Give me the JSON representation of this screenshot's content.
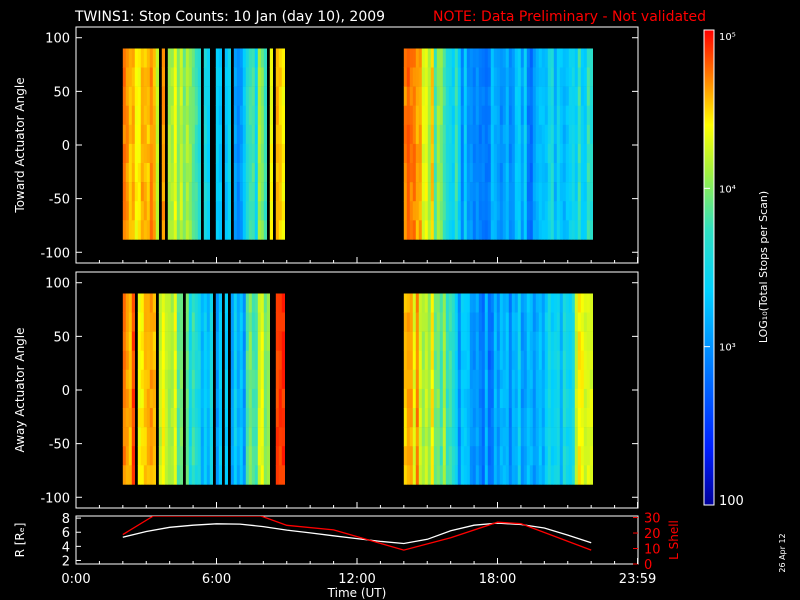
{
  "title": "TWINS1: Stop Counts: 10 Jan (day  10), 2009",
  "note": "NOTE: Data Preliminary - Not validated",
  "date_stamp": "26 Apr 12",
  "colors": {
    "background": "#000000",
    "axes": "#ffffff",
    "note": "#ff0000",
    "r_line": "#ffffff",
    "l_shell_line": "#ff0000"
  },
  "chart_data": [
    {
      "type": "heatmap",
      "name": "panel-toward",
      "ylabel": "Toward Actuator Angle",
      "xlim_hours": [
        0,
        24
      ],
      "ylim": [
        -110,
        110
      ],
      "yticks": [
        100,
        50,
        0,
        -50,
        -100
      ],
      "data_y_range": [
        -88,
        90
      ],
      "colorscale": "log",
      "coverage_intervals_hours": [
        [
          2.0,
          8.8
        ],
        [
          14.0,
          22.0
        ]
      ],
      "column_log_values": {
        "hours": [
          2.0,
          2.5,
          3.0,
          3.5,
          4.0,
          4.5,
          5.0,
          5.5,
          6.0,
          6.5,
          7.0,
          7.5,
          8.0,
          8.5,
          14.0,
          14.5,
          15.0,
          15.5,
          16.0,
          16.5,
          17.0,
          17.5,
          18.0,
          18.5,
          19.0,
          19.5,
          20.0,
          20.5,
          21.0,
          21.5
        ],
        "log10_counts": [
          4.8,
          4.6,
          4.5,
          4.4,
          4.2,
          4.0,
          3.8,
          3.4,
          3.2,
          3.3,
          3.1,
          3.6,
          4.0,
          4.6,
          4.6,
          4.5,
          4.3,
          4.0,
          3.6,
          3.2,
          3.0,
          3.0,
          3.1,
          3.1,
          3.2,
          3.0,
          3.3,
          3.4,
          3.4,
          3.6
        ]
      }
    },
    {
      "type": "heatmap",
      "name": "panel-away",
      "ylabel": "Away Actuator Angle",
      "xlim_hours": [
        0,
        24
      ],
      "ylim": [
        -110,
        110
      ],
      "yticks": [
        100,
        50,
        0,
        -50,
        -100
      ],
      "data_y_range": [
        -88,
        90
      ],
      "colorscale": "log",
      "coverage_intervals_hours": [
        [
          2.0,
          8.8
        ],
        [
          14.0,
          22.0
        ]
      ],
      "column_log_values": {
        "hours": [
          2.0,
          2.5,
          3.0,
          3.5,
          4.0,
          4.5,
          5.0,
          5.5,
          6.0,
          6.5,
          7.0,
          7.5,
          8.0,
          8.5,
          14.0,
          14.5,
          15.0,
          15.5,
          16.0,
          16.5,
          17.0,
          17.5,
          18.0,
          18.5,
          19.0,
          19.5,
          20.0,
          20.5,
          21.0,
          21.5
        ],
        "log10_counts": [
          4.8,
          4.6,
          4.5,
          4.4,
          4.2,
          4.0,
          3.7,
          3.4,
          3.2,
          3.3,
          3.2,
          3.8,
          4.2,
          4.7,
          4.6,
          4.5,
          4.3,
          4.0,
          3.6,
          3.2,
          3.0,
          3.0,
          3.1,
          3.1,
          3.2,
          3.1,
          3.3,
          3.3,
          3.4,
          4.2
        ]
      }
    },
    {
      "type": "line",
      "name": "panel-orbit",
      "xlabel": "Time (UT)",
      "xticks": [
        "0:00",
        "6:00",
        "12:00",
        "18:00",
        "23:59"
      ],
      "xtick_hours": [
        0,
        6,
        12,
        18,
        23.98
      ],
      "y_left_label": "R [Rₑ]",
      "y_left_ticks": [
        2,
        4,
        6,
        8
      ],
      "y_left_lim": [
        1.5,
        8.3
      ],
      "y_right_label": "L Shell",
      "y_right_ticks": [
        0,
        10,
        20,
        30
      ],
      "y_right_lim": [
        0,
        31
      ],
      "series": [
        {
          "name": "R [Rₑ]",
          "axis": "left",
          "x": [
            2.0,
            3.0,
            4.0,
            5.0,
            6.0,
            7.0,
            8.0,
            9.0,
            10.0,
            11.0,
            12.0,
            13.0,
            14.0,
            15.0,
            16.0,
            17.0,
            18.0,
            19.0,
            20.0,
            21.0,
            22.0
          ],
          "y": [
            5.3,
            6.1,
            6.7,
            7.0,
            7.2,
            7.15,
            6.8,
            6.3,
            5.9,
            5.5,
            5.1,
            4.7,
            4.4,
            5.0,
            6.2,
            7.0,
            7.3,
            7.1,
            6.6,
            5.6,
            4.5
          ]
        },
        {
          "name": "L Shell",
          "axis": "right",
          "x": [
            2.0,
            3.3,
            3.3,
            7.9,
            7.9,
            9.0,
            11.0,
            14.0,
            16.0,
            18.0,
            19.0,
            22.0
          ],
          "y": [
            19,
            31,
            31,
            31,
            31,
            25,
            22,
            9,
            17,
            27,
            26,
            9
          ]
        }
      ]
    }
  ],
  "colorbar": {
    "label": "LOG₁₀(Total Stops per Scan)",
    "scale": "log",
    "min_log": 2,
    "max_log": 5,
    "tick_labels": [
      "10⁵",
      "10⁴",
      "10³",
      "100"
    ],
    "tick_values_log": [
      5,
      4,
      3,
      2
    ]
  }
}
